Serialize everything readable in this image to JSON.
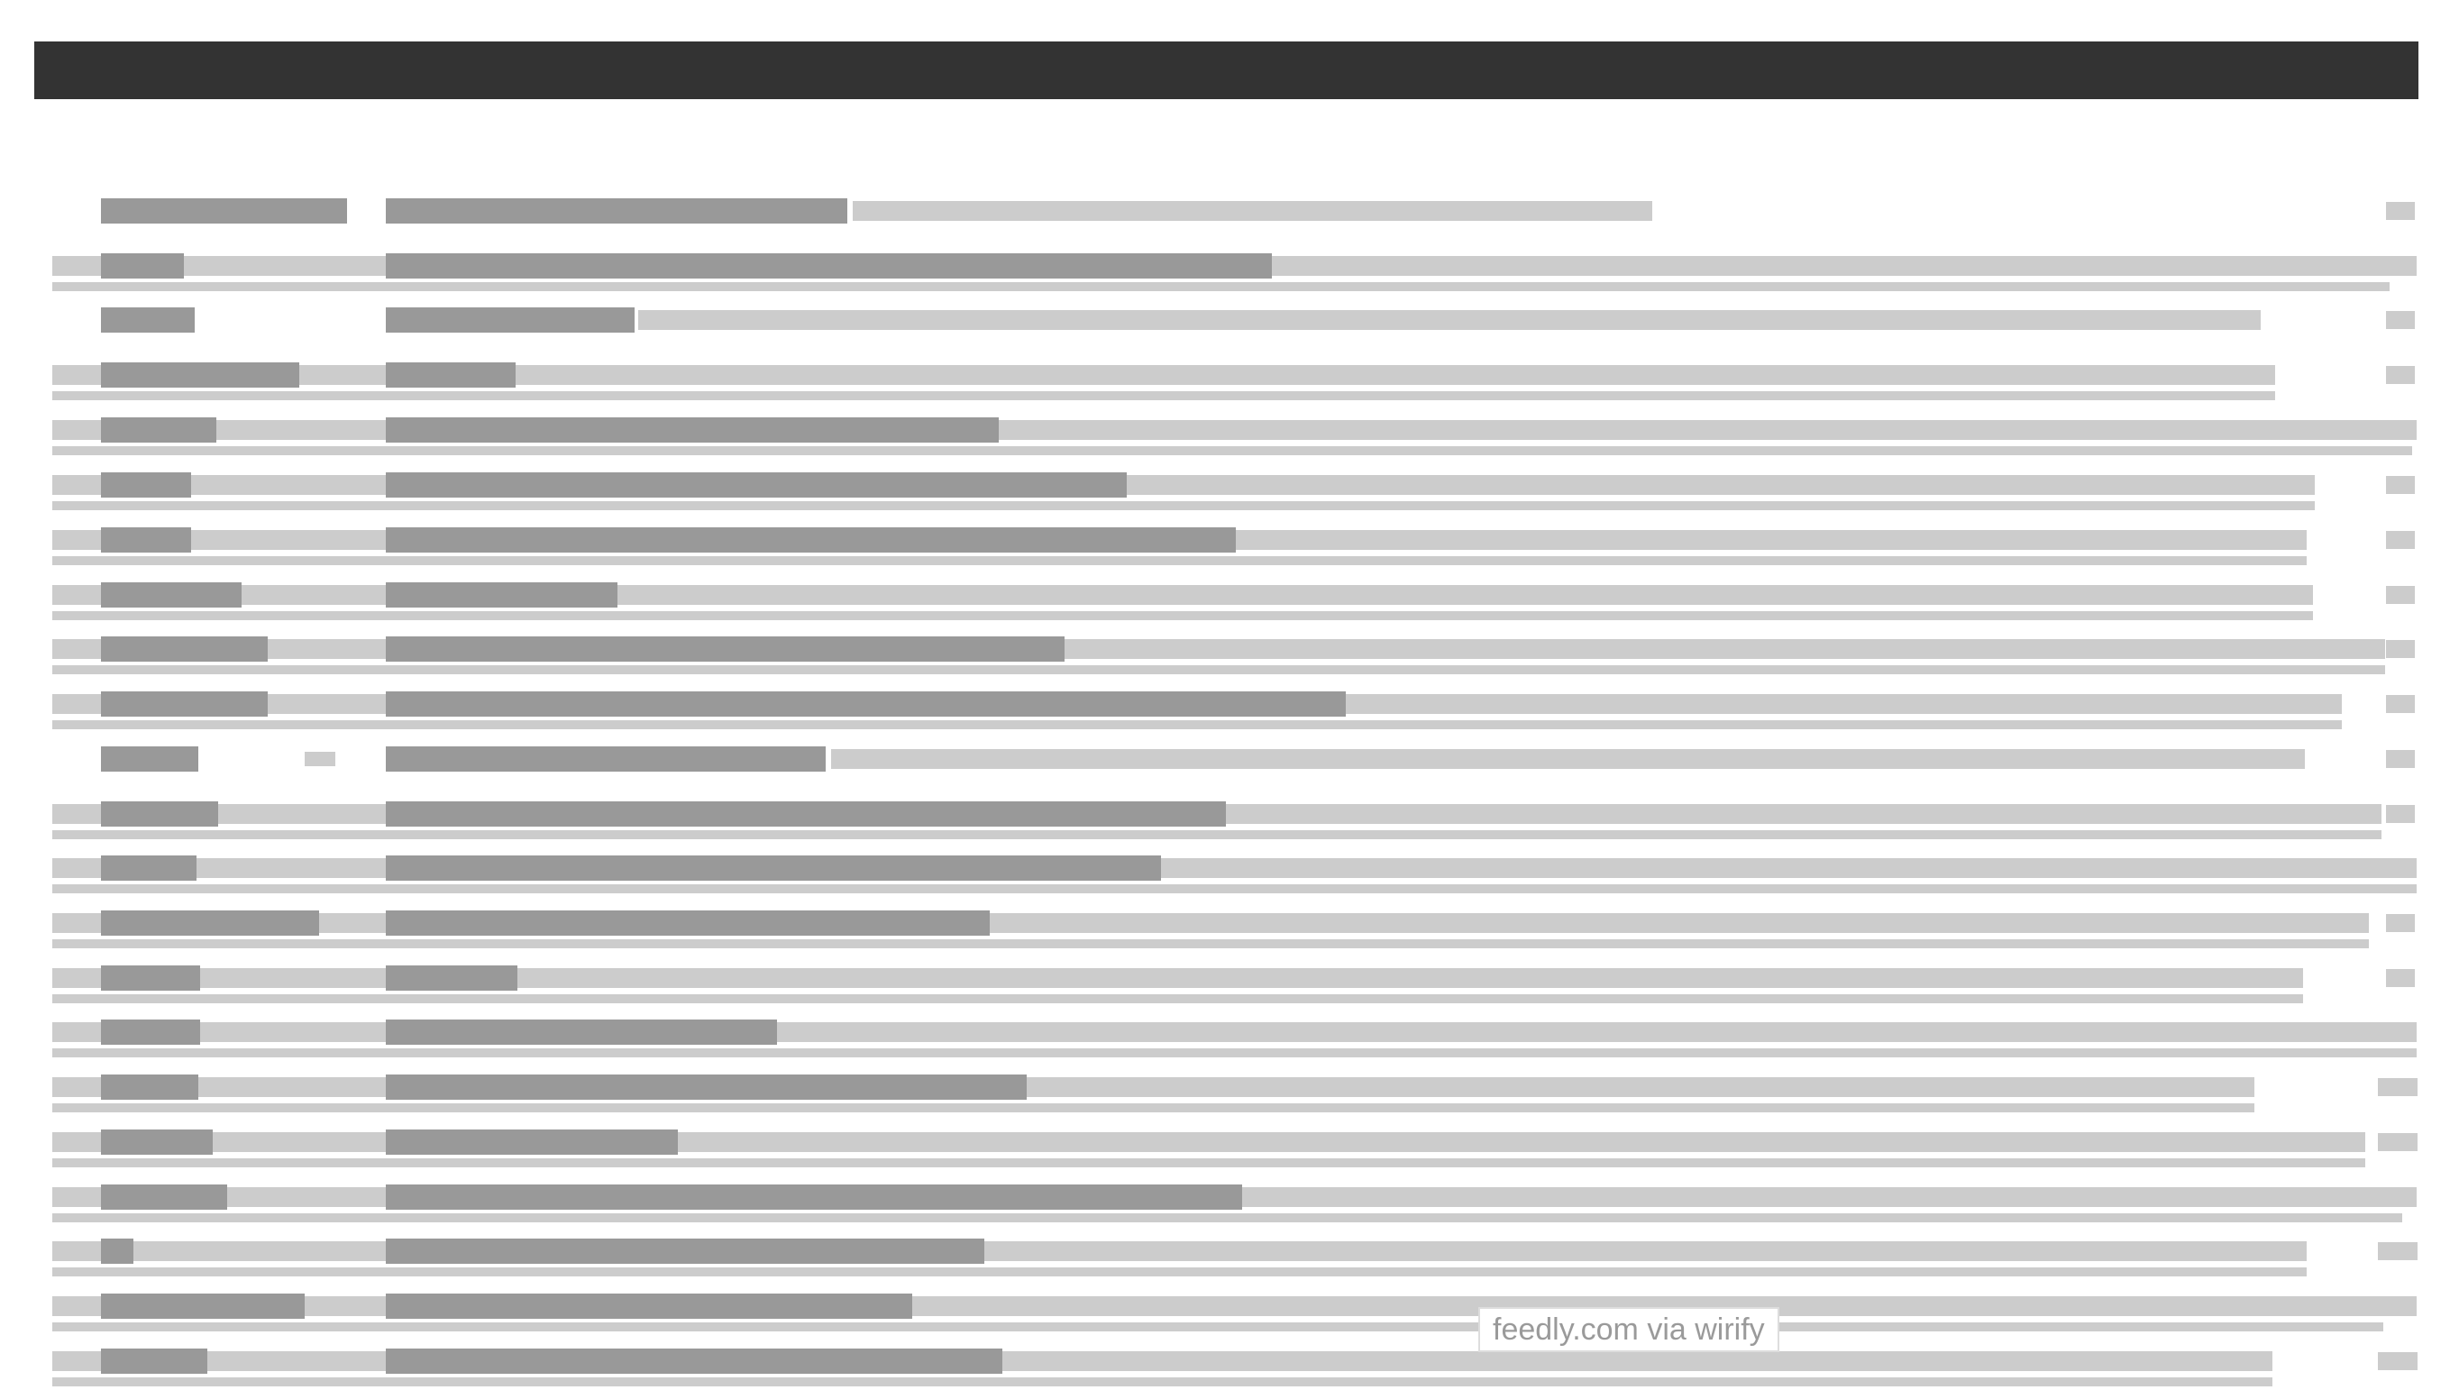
{
  "app": {
    "topbar": {
      "color": "#333333"
    },
    "colors": {
      "placeholder_dark": "#999999",
      "placeholder_light": "#cccccc",
      "background": "#ffffff"
    },
    "article_rows": [
      {
        "unread_bar": false,
        "has_snippet_line": false
      },
      {
        "unread_bar": true,
        "has_snippet_line": true
      },
      {
        "unread_bar": false,
        "has_snippet_line": false
      },
      {
        "unread_bar": true,
        "has_snippet_line": true
      },
      {
        "unread_bar": true,
        "has_snippet_line": true
      },
      {
        "unread_bar": true,
        "has_snippet_line": true
      },
      {
        "unread_bar": true,
        "has_snippet_line": true
      },
      {
        "unread_bar": true,
        "has_snippet_line": true
      },
      {
        "unread_bar": true,
        "has_snippet_line": true
      },
      {
        "unread_bar": true,
        "has_snippet_line": true
      },
      {
        "unread_bar": false,
        "has_snippet_line": false,
        "has_badge": true
      },
      {
        "unread_bar": true,
        "has_snippet_line": true
      },
      {
        "unread_bar": true,
        "has_snippet_line": true
      },
      {
        "unread_bar": true,
        "has_snippet_line": true
      },
      {
        "unread_bar": true,
        "has_snippet_line": true
      },
      {
        "unread_bar": true,
        "has_snippet_line": true
      },
      {
        "unread_bar": true,
        "has_snippet_line": true
      },
      {
        "unread_bar": true,
        "has_snippet_line": true
      },
      {
        "unread_bar": true,
        "has_snippet_line": true
      },
      {
        "unread_bar": true,
        "has_snippet_line": true
      },
      {
        "unread_bar": true,
        "has_snippet_line": true
      },
      {
        "unread_bar": true,
        "has_snippet_line": true
      }
    ],
    "watermark": "feedly.com via wirify"
  }
}
